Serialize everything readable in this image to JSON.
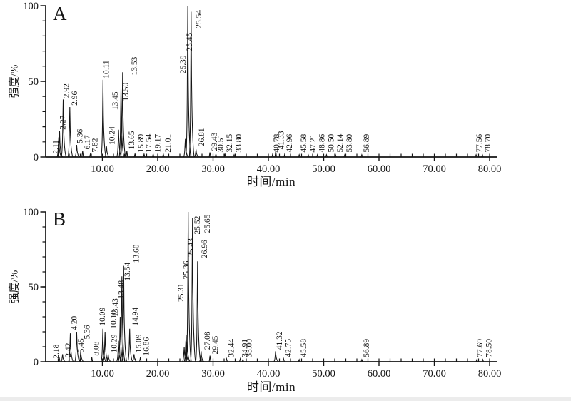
{
  "figure": {
    "description": "Two stacked total-ion chromatograms labeled A and B, black line traces on white, peaks annotated with retention times (rotated labels)",
    "panel_letters": [
      "A",
      "B"
    ]
  },
  "colors": {
    "ink": "#151515",
    "background": "#ffffff",
    "page_edge": "#ececec"
  },
  "axes": {
    "xlabel": "时间/min",
    "ylabel": "强度/%",
    "x_range": [
      0,
      81.5
    ],
    "y_range": [
      0,
      100
    ],
    "x_major_ticks": [
      {
        "v": 10,
        "label": "10.00"
      },
      {
        "v": 20,
        "label": "20.00"
      },
      {
        "v": 30,
        "label": "30.00"
      },
      {
        "v": 40,
        "label": "40.00"
      },
      {
        "v": 50,
        "label": "50.00"
      },
      {
        "v": 60,
        "label": "60.00"
      },
      {
        "v": 70,
        "label": "70.00"
      },
      {
        "v": 80,
        "label": "80.00"
      }
    ],
    "y_major_ticks": [
      {
        "v": 0,
        "label": "0"
      },
      {
        "v": 50,
        "label": "50"
      },
      {
        "v": 100,
        "label": "100"
      }
    ],
    "x_minor_step": 2,
    "y_minor_step": 10,
    "grid": false,
    "legend": "none"
  },
  "chart_data": [
    {
      "type": "line",
      "panel_label": "A",
      "xlabel": "时间/min",
      "ylabel": "强度/%",
      "x_range": [
        0,
        81.5
      ],
      "y_range": [
        0,
        100
      ],
      "peak_fields": [
        "label",
        "rt_min",
        "height_pct",
        "label_base_pct",
        "spike_dx_px",
        "label_dx_px"
      ],
      "peaks": [
        [
          "2.11",
          2.11,
          13,
          2,
          0,
          -11
        ],
        [
          "2.27",
          2.27,
          17,
          18,
          0,
          -2
        ],
        [
          "2.92",
          2.92,
          38,
          39,
          0,
          -2
        ],
        [
          "2.96",
          2.96,
          33,
          34,
          9,
          0
        ],
        [
          "5.36",
          5.36,
          8,
          9,
          0,
          -2
        ],
        [
          "6.17",
          6.17,
          4,
          5,
          2,
          0
        ],
        [
          "7.82",
          7.82,
          2,
          3,
          0,
          0
        ],
        [
          "10.11",
          10.11,
          51,
          52,
          0,
          -2
        ],
        [
          "10.24",
          10.24,
          7,
          8,
          4,
          1
        ],
        [
          "13.45",
          13.45,
          18,
          31,
          -4,
          -11
        ],
        [
          "13.50",
          13.5,
          45,
          37,
          -1,
          0
        ],
        [
          "13.53",
          13.53,
          56,
          54,
          1,
          10
        ],
        [
          "13.65",
          13.65,
          4,
          5,
          6,
          0
        ],
        [
          "15.89",
          15.89,
          2,
          3,
          0,
          2
        ],
        [
          "17.54",
          17.54,
          2,
          3,
          0,
          0
        ],
        [
          "19.17",
          19.17,
          2,
          3,
          0,
          0
        ],
        [
          "21.01",
          21.01,
          2,
          3,
          0,
          0
        ],
        [
          "25.39",
          25.39,
          12,
          55,
          -3,
          -10
        ],
        [
          "25.45",
          25.45,
          100,
          70,
          0,
          -4
        ],
        [
          "25.54",
          25.54,
          96,
          85,
          4,
          4
        ],
        [
          "26.81",
          26.81,
          5,
          7,
          1,
          1
        ],
        [
          "29.43",
          29.43,
          3,
          4,
          0,
          0
        ],
        [
          "30.51",
          30.51,
          2,
          3,
          0,
          0
        ],
        [
          "32.15",
          32.15,
          2,
          3,
          0,
          0
        ],
        [
          "33.80",
          33.8,
          1.5,
          3,
          0,
          0
        ],
        [
          "40.78",
          40.78,
          2,
          3,
          0,
          -1
        ],
        [
          "41.33",
          41.33,
          4,
          5,
          0,
          1
        ],
        [
          "42.96",
          42.96,
          2,
          3,
          0,
          0
        ],
        [
          "45.58",
          45.58,
          1.5,
          3,
          0,
          0
        ],
        [
          "47.21",
          47.21,
          1.5,
          3,
          0,
          0
        ],
        [
          "48.86",
          48.86,
          1.5,
          3,
          0,
          0
        ],
        [
          "50.50",
          50.5,
          1.5,
          3,
          0,
          0
        ],
        [
          "52.14",
          52.14,
          1.5,
          3,
          0,
          0
        ],
        [
          "53.80",
          53.8,
          1.5,
          3,
          0,
          0
        ],
        [
          "56.89",
          56.89,
          1.5,
          3,
          0,
          0
        ],
        [
          "77.56",
          77.56,
          1.5,
          3,
          0,
          -2
        ],
        [
          "78.70",
          78.7,
          1.5,
          3,
          0,
          1
        ]
      ]
    },
    {
      "type": "line",
      "panel_label": "B",
      "xlabel": "时间/min",
      "ylabel": "强度/%",
      "x_range": [
        0,
        81.5
      ],
      "y_range": [
        0,
        100
      ],
      "peak_fields": [
        "label",
        "rt_min",
        "height_pct",
        "label_base_pct",
        "spike_dx_px",
        "label_dx_px"
      ],
      "peaks": [
        [
          "2.18",
          2.18,
          3,
          2,
          0,
          -11
        ],
        [
          "2.42",
          2.42,
          5,
          3,
          3,
          1
        ],
        [
          "4.20",
          4.2,
          19,
          21,
          0,
          -1
        ],
        [
          "5.45",
          5.45,
          7,
          6,
          5,
          -6
        ],
        [
          "5.36",
          5.36,
          20,
          15,
          0,
          8
        ],
        [
          "8.08",
          8.08,
          3,
          4,
          0,
          0
        ],
        [
          "10.09",
          10.09,
          22,
          24,
          0,
          -7
        ],
        [
          "10.10",
          10.1,
          20,
          22,
          3,
          5
        ],
        [
          "10.29",
          10.29,
          5,
          6,
          6,
          2
        ],
        [
          "13.43",
          13.43,
          14,
          30,
          -4,
          -11
        ],
        [
          "13.48",
          13.48,
          30,
          42,
          -2,
          -5
        ],
        [
          "13.54",
          13.54,
          57,
          54,
          0,
          1
        ],
        [
          "13.60",
          13.6,
          64,
          66,
          2,
          11
        ],
        [
          "14.94",
          14.94,
          22,
          24,
          0,
          1
        ],
        [
          "15.09",
          15.09,
          5,
          6,
          5,
          0
        ],
        [
          "16.86",
          16.86,
          3,
          4,
          0,
          2
        ],
        [
          "25.31",
          25.31,
          10,
          40,
          -4,
          -11
        ],
        [
          "25.36",
          25.36,
          14,
          55,
          -2,
          -6
        ],
        [
          "25.43",
          25.43,
          18,
          70,
          -1,
          -1
        ],
        [
          "25.52",
          25.52,
          100,
          85,
          0,
          6
        ],
        [
          "25.65",
          25.65,
          96,
          86,
          5,
          14
        ],
        [
          "26.96",
          26.96,
          67,
          69,
          2,
          3
        ],
        [
          "27.08",
          27.08,
          7,
          8,
          6,
          2
        ],
        [
          "29.45",
          29.45,
          4,
          5,
          0,
          1
        ],
        [
          "32.44",
          32.44,
          2,
          3,
          0,
          0
        ],
        [
          "34.91",
          34.91,
          2,
          3,
          0,
          0
        ],
        [
          "35.00",
          35.0,
          1.5,
          3,
          3,
          2
        ],
        [
          "41.32",
          41.32,
          7,
          8,
          0,
          -1
        ],
        [
          "42.75",
          42.75,
          2,
          3,
          0,
          0
        ],
        [
          "45.58",
          45.58,
          1.5,
          3,
          0,
          0
        ],
        [
          "56.89",
          56.89,
          1.5,
          3,
          0,
          0
        ],
        [
          "77.69",
          77.69,
          1.5,
          3,
          0,
          -2
        ],
        [
          "78.50",
          78.5,
          1.5,
          3,
          2,
          2
        ]
      ]
    }
  ]
}
